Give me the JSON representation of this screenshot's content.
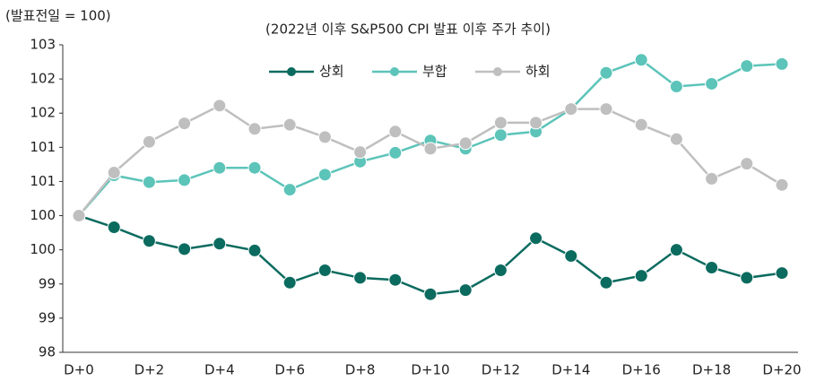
{
  "chart_data": {
    "type": "line",
    "title": "(2022년 이후 S&P500 CPI 발표 이후 주가 추이)",
    "y_label": "(발표전일 = 100)",
    "categories": [
      "D+0",
      null,
      "D+2",
      null,
      "D+4",
      null,
      "D+6",
      null,
      "D+8",
      null,
      "D+10",
      null,
      "D+12",
      null,
      "D+14",
      null,
      "D+16",
      null,
      "D+18",
      null,
      "D+20"
    ],
    "series": [
      {
        "name": "상회",
        "color": "#0b6b5f",
        "values": [
          100,
          99.83,
          99.63,
          99.51,
          99.59,
          99.49,
          99.02,
          99.2,
          99.09,
          99.06,
          98.85,
          98.91,
          99.2,
          99.67,
          99.41,
          99.02,
          99.12,
          99.5,
          99.24,
          99.09,
          99.16
        ]
      },
      {
        "name": "부합",
        "color": "#5cc4b9",
        "values": [
          100,
          100.59,
          100.49,
          100.52,
          100.7,
          100.7,
          100.38,
          100.6,
          100.79,
          100.92,
          101.1,
          100.98,
          101.18,
          101.23,
          101.56,
          102.09,
          102.28,
          101.89,
          101.93,
          102.19,
          102.22
        ]
      },
      {
        "name": "하회",
        "color": "#bfbfbf",
        "values": [
          100,
          100.63,
          101.08,
          101.35,
          101.61,
          101.27,
          101.33,
          101.15,
          100.93,
          101.23,
          100.98,
          101.06,
          101.36,
          101.36,
          101.56,
          101.56,
          101.33,
          101.12,
          100.54,
          100.76,
          100.45
        ]
      }
    ],
    "ylim": [
      98,
      102.5
    ],
    "yticks": [
      98,
      {
        "value": 98.5,
        "label": "99"
      },
      99,
      {
        "value": 99.5,
        "label": "100"
      },
      100,
      {
        "value": 100.5,
        "label": "101"
      },
      101,
      {
        "value": 101.5,
        "label": "102"
      },
      102,
      {
        "value": 102.5,
        "label": "103"
      }
    ],
    "grid": false,
    "legend": "top"
  }
}
